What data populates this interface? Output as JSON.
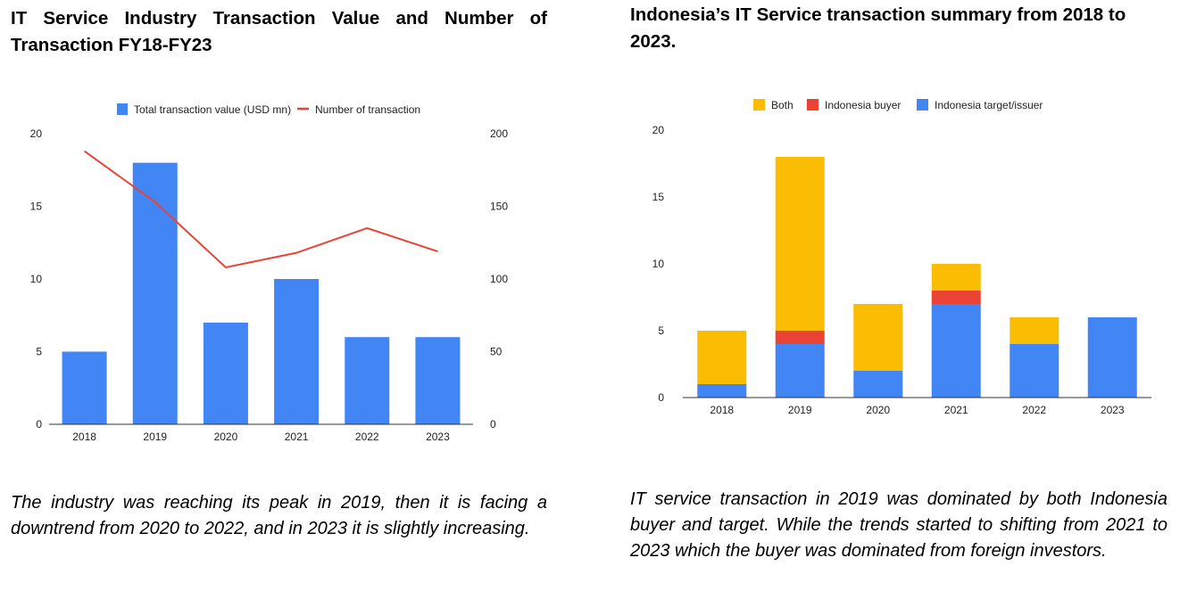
{
  "left": {
    "title": "IT Service Industry Transaction Value and Number of Transaction FY18-FY23",
    "caption": "The industry was reaching its peak in 2019, then it is facing a downtrend from 2020 to 2022, and in 2023 it is slightly increasing."
  },
  "right": {
    "title": "Indonesia’s IT Service transaction summary from 2018 to 2023.",
    "caption": "IT service transaction in 2019 was dominated by both Indonesia buyer and target. While the trends started to shifting from 2021 to 2023 which the buyer was dominated from foreign investors."
  },
  "chart_data": [
    {
      "type": "bar",
      "title": "IT Service Industry Transaction Value and Number of Transaction FY18-FY23",
      "categories": [
        "2018",
        "2019",
        "2020",
        "2021",
        "2022",
        "2023"
      ],
      "series": [
        {
          "name": "Total transaction value (USD mn)",
          "type": "bar",
          "axis": "left",
          "color": "#4285F4",
          "values": [
            5,
            18,
            7,
            10,
            6,
            6
          ]
        },
        {
          "name": "Number of transaction",
          "type": "line",
          "axis": "right",
          "color": "#EA4335",
          "values": [
            188,
            153,
            108,
            118,
            135,
            119
          ]
        }
      ],
      "y_left": {
        "range": [
          0,
          20
        ],
        "ticks": [
          "0",
          "5",
          "10",
          "15",
          "20"
        ]
      },
      "y_right": {
        "range": [
          0,
          200
        ],
        "ticks": [
          "0",
          "50",
          "100",
          "150",
          "200"
        ]
      },
      "legend": "top",
      "grid": false
    },
    {
      "type": "bar",
      "stacked": true,
      "title": "Indonesia’s IT Service transaction summary from 2018 to 2023.",
      "categories": [
        "2018",
        "2019",
        "2020",
        "2021",
        "2022",
        "2023"
      ],
      "series": [
        {
          "name": "Indonesia target/issuer",
          "color": "#4285F4",
          "values": [
            1,
            4,
            2,
            7,
            4,
            6
          ]
        },
        {
          "name": "Indonesia buyer",
          "color": "#EA4335",
          "values": [
            0,
            1,
            0,
            1,
            0,
            0
          ]
        },
        {
          "name": "Both",
          "color": "#FBBC04",
          "values": [
            4,
            13,
            5,
            2,
            2,
            0
          ]
        }
      ],
      "legend_order": [
        "Both",
        "Indonesia buyer",
        "Indonesia target/issuer"
      ],
      "y": {
        "range": [
          0,
          20
        ],
        "ticks": [
          "0",
          "5",
          "10",
          "15",
          "20"
        ]
      },
      "legend": "top",
      "grid": false
    }
  ]
}
